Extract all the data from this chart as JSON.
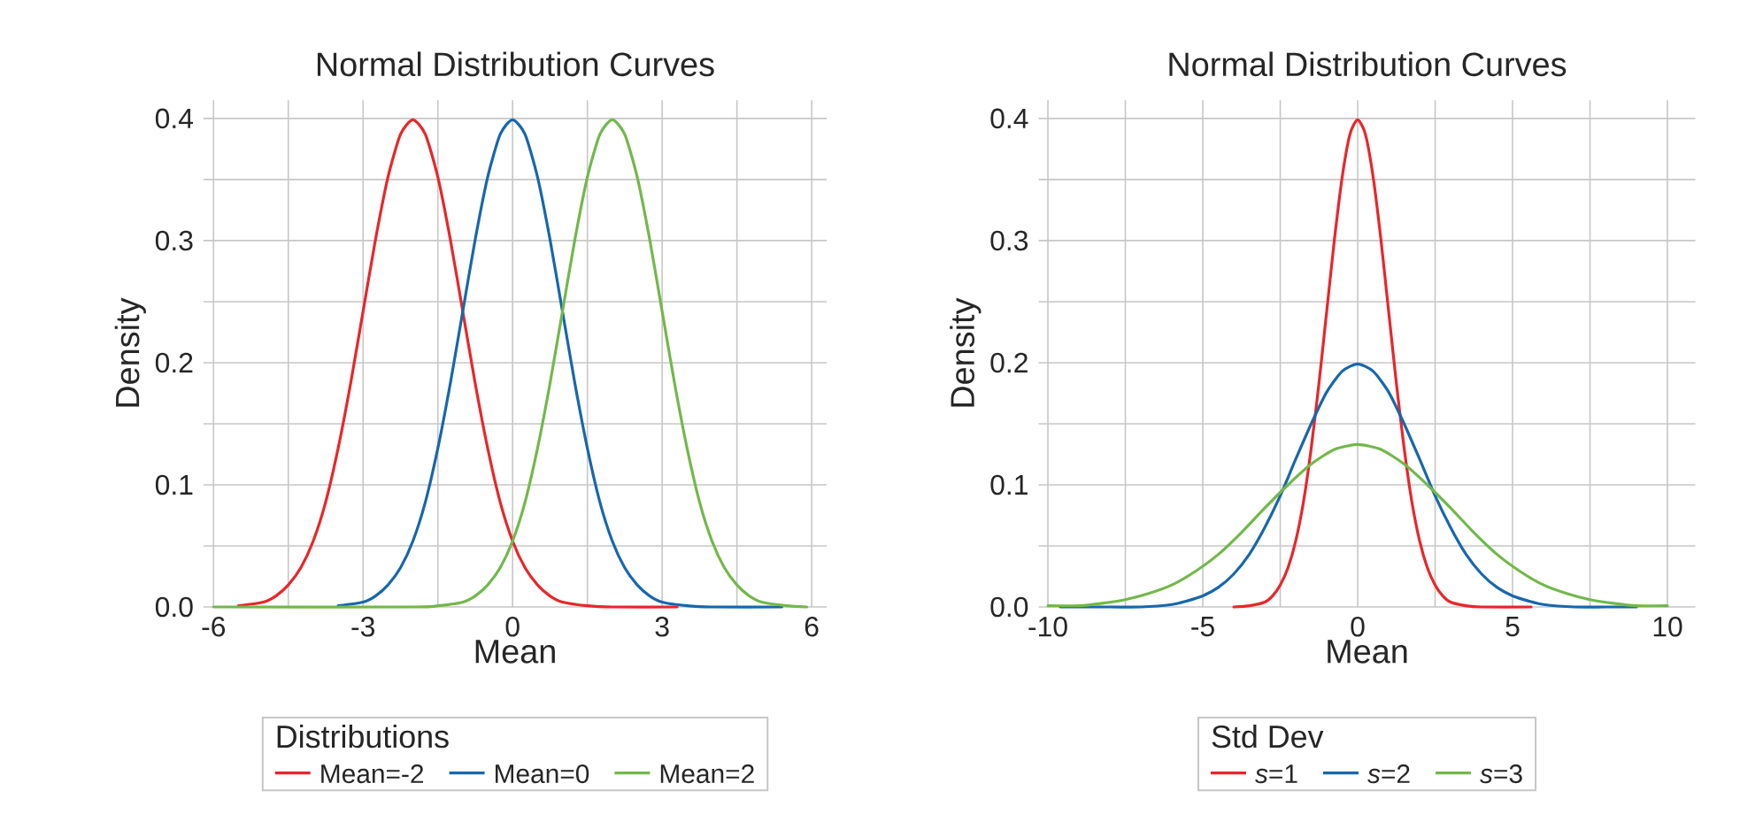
{
  "chart_data": [
    {
      "type": "line",
      "title": "Normal Distribution Curves",
      "xlabel": "Mean",
      "ylabel": "Density",
      "legend_title": "Distributions",
      "legend": "bottom",
      "grid": true,
      "line_style": "solid",
      "marker": "none",
      "xlim": [
        -6.2,
        6.3
      ],
      "ylim": [
        0,
        0.415
      ],
      "xticks": [
        -6,
        {
          "value": -4.5,
          "label": null
        },
        -3,
        {
          "value": -1.5,
          "label": null
        },
        0,
        {
          "value": 1.5,
          "label": null
        },
        3,
        {
          "value": 4.5,
          "label": null
        },
        6
      ],
      "yticks": [
        {
          "value": 0,
          "label": "0.0"
        },
        {
          "value": 0.05,
          "label": null
        },
        0.1,
        {
          "value": 0.15,
          "label": null
        },
        0.2,
        {
          "value": 0.25,
          "label": null
        },
        0.3,
        {
          "value": 0.35,
          "label": null
        },
        0.4
      ],
      "series": [
        {
          "name": "Mean=-2",
          "color": "#e8262a",
          "x": [
            -5.5,
            -5,
            -4.75,
            -4.5,
            -4.25,
            -4,
            -3.75,
            -3.5,
            -3.25,
            -3,
            -2.75,
            -2.5,
            -2.25,
            -2,
            -1.75,
            -1.5,
            -1.25,
            -1,
            -0.75,
            -0.5,
            -0.25,
            0,
            0.25,
            0.5,
            0.75,
            1,
            1.5,
            2,
            3.3
          ],
          "values": [
            0.001,
            0.004,
            0.009,
            0.018,
            0.032,
            0.054,
            0.086,
            0.13,
            0.183,
            0.242,
            0.301,
            0.352,
            0.387,
            0.399,
            0.387,
            0.352,
            0.301,
            0.242,
            0.183,
            0.13,
            0.086,
            0.054,
            0.032,
            0.018,
            0.009,
            0.004,
            0.001,
            0,
            0
          ]
        },
        {
          "name": "Mean=0",
          "color": "#1767ac",
          "x": [
            -3.5,
            -3,
            -2.75,
            -2.5,
            -2.25,
            -2,
            -1.75,
            -1.5,
            -1.25,
            -1,
            -0.75,
            -0.5,
            -0.25,
            0,
            0.25,
            0.5,
            0.75,
            1,
            1.25,
            1.5,
            1.75,
            2,
            2.25,
            2.5,
            2.75,
            3,
            3.5,
            4,
            5.4
          ],
          "values": [
            0.001,
            0.004,
            0.009,
            0.018,
            0.032,
            0.054,
            0.086,
            0.13,
            0.183,
            0.242,
            0.301,
            0.352,
            0.387,
            0.399,
            0.387,
            0.352,
            0.301,
            0.242,
            0.183,
            0.13,
            0.086,
            0.054,
            0.032,
            0.018,
            0.009,
            0.004,
            0.001,
            0,
            0
          ]
        },
        {
          "name": "Mean=2",
          "color": "#72b84a",
          "x": [
            -6,
            -2,
            -1.5,
            -1,
            -0.75,
            -0.5,
            -0.25,
            0,
            0.25,
            0.5,
            0.75,
            1,
            1.25,
            1.5,
            1.75,
            2,
            2.25,
            2.5,
            2.75,
            3,
            3.25,
            3.5,
            3.75,
            4,
            4.25,
            4.5,
            4.75,
            5,
            5.5,
            5.9
          ],
          "values": [
            0,
            0,
            0.001,
            0.004,
            0.009,
            0.018,
            0.032,
            0.054,
            0.086,
            0.13,
            0.183,
            0.242,
            0.301,
            0.352,
            0.387,
            0.399,
            0.387,
            0.352,
            0.301,
            0.242,
            0.183,
            0.13,
            0.086,
            0.054,
            0.032,
            0.018,
            0.009,
            0.004,
            0.001,
            0
          ]
        }
      ]
    },
    {
      "type": "line",
      "title": "Normal Distribution Curves",
      "xlabel": "Mean",
      "ylabel": "Density",
      "legend_title": "Std Dev",
      "legend": "bottom",
      "grid": true,
      "line_style": "solid",
      "marker": "none",
      "xlim": [
        -10.3,
        10.9
      ],
      "ylim": [
        0,
        0.415
      ],
      "xticks": [
        -10,
        {
          "value": -7.5,
          "label": null
        },
        -5,
        {
          "value": -2.5,
          "label": null
        },
        0,
        {
          "value": 2.5,
          "label": null
        },
        5,
        {
          "value": 7.5,
          "label": null
        },
        10
      ],
      "yticks": [
        {
          "value": 0,
          "label": "0.0"
        },
        {
          "value": 0.05,
          "label": null
        },
        0.1,
        {
          "value": 0.15,
          "label": null
        },
        0.2,
        {
          "value": 0.25,
          "label": null
        },
        0.3,
        {
          "value": 0.35,
          "label": null
        },
        0.4
      ],
      "series": [
        {
          "name": "*s*=1",
          "color": "#e8262a",
          "x": [
            -4,
            -3.5,
            -3,
            -2.75,
            -2.5,
            -2.25,
            -2,
            -1.75,
            -1.5,
            -1.25,
            -1,
            -0.75,
            -0.5,
            -0.25,
            0,
            0.25,
            0.5,
            0.75,
            1,
            1.25,
            1.5,
            1.75,
            2,
            2.25,
            2.5,
            2.75,
            3,
            3.5,
            4,
            5.6
          ],
          "values": [
            0,
            0.001,
            0.004,
            0.009,
            0.018,
            0.032,
            0.054,
            0.086,
            0.13,
            0.183,
            0.242,
            0.301,
            0.352,
            0.387,
            0.399,
            0.387,
            0.352,
            0.301,
            0.242,
            0.183,
            0.13,
            0.086,
            0.054,
            0.032,
            0.018,
            0.009,
            0.004,
            0.001,
            0,
            0
          ]
        },
        {
          "name": "*s*=2",
          "color": "#1767ac",
          "x": [
            -9.6,
            -8,
            -7,
            -6,
            -5.5,
            -5,
            -4.5,
            -4,
            -3.5,
            -3,
            -2.5,
            -2,
            -1.5,
            -1,
            -0.5,
            0,
            0.5,
            1,
            1.5,
            2,
            2.5,
            3,
            3.5,
            4,
            4.5,
            5,
            5.5,
            6,
            7,
            8,
            9
          ],
          "values": [
            0,
            0,
            0,
            0.002,
            0.005,
            0.009,
            0.016,
            0.027,
            0.043,
            0.065,
            0.091,
            0.121,
            0.15,
            0.176,
            0.193,
            0.199,
            0.193,
            0.176,
            0.15,
            0.121,
            0.091,
            0.065,
            0.043,
            0.027,
            0.016,
            0.009,
            0.005,
            0.002,
            0,
            0,
            0
          ]
        },
        {
          "name": "*s*=3",
          "color": "#72b84a",
          "x": [
            -10,
            -9,
            -8.25,
            -7.5,
            -6.75,
            -6,
            -5.25,
            -4.5,
            -3.75,
            -3,
            -2.25,
            -1.5,
            -0.75,
            0,
            0.75,
            1.5,
            2.25,
            3,
            3.75,
            4.5,
            5.25,
            6,
            6.75,
            7.5,
            8.25,
            9,
            10
          ],
          "values": [
            0.001,
            0.001,
            0.003,
            0.006,
            0.011,
            0.018,
            0.029,
            0.043,
            0.061,
            0.081,
            0.1,
            0.117,
            0.129,
            0.133,
            0.129,
            0.117,
            0.1,
            0.081,
            0.061,
            0.043,
            0.029,
            0.018,
            0.011,
            0.006,
            0.003,
            0.001,
            0.001
          ]
        }
      ]
    }
  ]
}
